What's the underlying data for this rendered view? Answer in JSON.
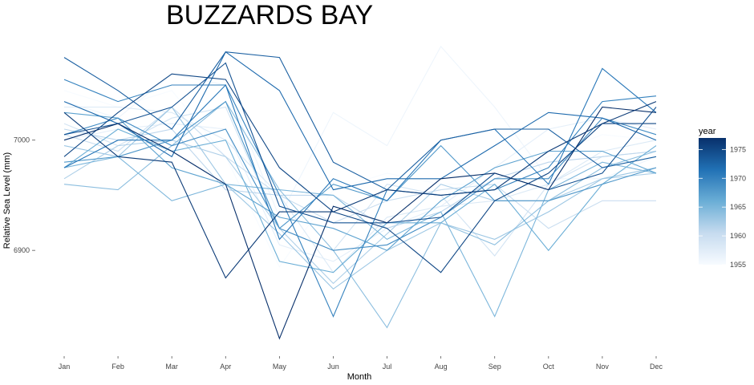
{
  "chart_data": {
    "type": "line",
    "title": "BUZZARDS BAY",
    "xlabel": "Month",
    "ylabel": "Relative Sea Level (mm)",
    "categories": [
      "Jan",
      "Feb",
      "Mar",
      "Apr",
      "May",
      "Jun",
      "Jul",
      "Aug",
      "Sep",
      "Oct",
      "Nov",
      "Dec"
    ],
    "ylim": [
      6815,
      7090
    ],
    "yticks": [
      6900,
      7000
    ],
    "grid": false,
    "legend": {
      "title": "year",
      "position": "right",
      "type": "continuous-colorbar",
      "range": [
        1955,
        1977
      ],
      "ticks": [
        1955,
        1960,
        1965,
        1970,
        1975
      ],
      "color_low": "#f7fbff",
      "color_high": "#08306b"
    },
    "series": [
      {
        "year": 1955,
        "values": [
          7045,
          7030,
          7045,
          6985,
          6885,
          6955,
          6970,
          6960,
          6960,
          6985,
          7005,
          7000
        ]
      },
      {
        "year": 1956,
        "values": [
          7035,
          7020,
          7060,
          7050,
          6930,
          7025,
          6995,
          7085,
          7030,
          6965,
          6965,
          6985
        ]
      },
      {
        "year": 1957,
        "values": [
          7000,
          7010,
          7015,
          7010,
          6905,
          6890,
          6920,
          6940,
          6975,
          7010,
          7020,
          7010
        ]
      },
      {
        "year": 1958,
        "values": [
          7030,
          7030,
          7025,
          7000,
          6950,
          6880,
          6930,
          6940,
          6945,
          6960,
          6990,
          7000
        ]
      },
      {
        "year": 1959,
        "values": [
          7015,
          6995,
          7020,
          7030,
          6920,
          6900,
          6960,
          6950,
          6895,
          6960,
          6985,
          6990
        ]
      },
      {
        "year": 1960,
        "values": [
          7005,
          6990,
          7030,
          6985,
          6950,
          6925,
          6945,
          6955,
          6960,
          6920,
          6945,
          6945
        ]
      },
      {
        "year": 1961,
        "values": [
          7010,
          7000,
          7010,
          6955,
          6950,
          6950,
          6920,
          6935,
          6965,
          6980,
          6985,
          6990
        ]
      },
      {
        "year": 1962,
        "values": [
          6965,
          6995,
          7000,
          6985,
          6920,
          6870,
          6915,
          6960,
          6945,
          6945,
          6965,
          6970
        ]
      },
      {
        "year": 1963,
        "values": [
          6995,
          6985,
          7030,
          6960,
          6915,
          6865,
          6900,
          6925,
          6910,
          6935,
          6965,
          6975
        ]
      },
      {
        "year": 1964,
        "values": [
          6960,
          6955,
          6995,
          7035,
          6955,
          6900,
          6830,
          6925,
          6905,
          6945,
          6975,
          6990
        ]
      },
      {
        "year": 1965,
        "values": [
          6975,
          6985,
          6945,
          6960,
          6955,
          6950,
          6910,
          6935,
          6840,
          6955,
          6980,
          6970
        ]
      },
      {
        "year": 1966,
        "values": [
          6975,
          7010,
          6990,
          7000,
          6890,
          6880,
          6925,
          6925,
          6960,
          6900,
          6960,
          6995
        ]
      },
      {
        "year": 1967,
        "values": [
          7025,
          7020,
          6975,
          6960,
          6930,
          6920,
          6900,
          6945,
          6975,
          6990,
          6990,
          6970
        ]
      },
      {
        "year": 1968,
        "values": [
          6980,
          6985,
          7000,
          7035,
          6920,
          6960,
          6945,
          6995,
          6945,
          6945,
          6960,
          6975
        ]
      },
      {
        "year": 1969,
        "values": [
          7005,
          7020,
          6995,
          7010,
          6920,
          6900,
          6905,
          6930,
          6965,
          6965,
          7020,
          7005
        ]
      },
      {
        "year": 1970,
        "values": [
          7055,
          7035,
          7050,
          7050,
          6950,
          6840,
          6955,
          6950,
          6955,
          6975,
          7035,
          7040
        ]
      },
      {
        "year": 1971,
        "values": [
          6975,
          7000,
          7000,
          7050,
          6910,
          6965,
          6945,
          7000,
          7010,
          6960,
          7065,
          7025
        ]
      },
      {
        "year": 1972,
        "values": [
          7035,
          7015,
          6985,
          7080,
          7045,
          6955,
          6965,
          6965,
          6995,
          7025,
          7020,
          7000
        ]
      },
      {
        "year": 1973,
        "values": [
          7075,
          7045,
          7010,
          7080,
          7075,
          6980,
          6955,
          7000,
          7010,
          7010,
          6975,
          6985
        ]
      },
      {
        "year": 1974,
        "values": [
          7005,
          7015,
          7030,
          7070,
          6940,
          6925,
          6925,
          6930,
          6970,
          6955,
          6970,
          7030
        ]
      },
      {
        "year": 1975,
        "values": [
          6985,
          7025,
          7060,
          7055,
          6975,
          6935,
          6920,
          6880,
          6945,
          6970,
          7015,
          7015
        ]
      },
      {
        "year": 1976,
        "values": [
          7025,
          6985,
          6980,
          6875,
          6935,
          6935,
          6955,
          6950,
          6955,
          6990,
          7015,
          7035
        ]
      },
      {
        "year": 1977,
        "values": [
          7000,
          7015,
          6990,
          6960,
          6820,
          6940,
          6925,
          6965,
          6970,
          6955,
          7030,
          7025
        ]
      }
    ]
  }
}
